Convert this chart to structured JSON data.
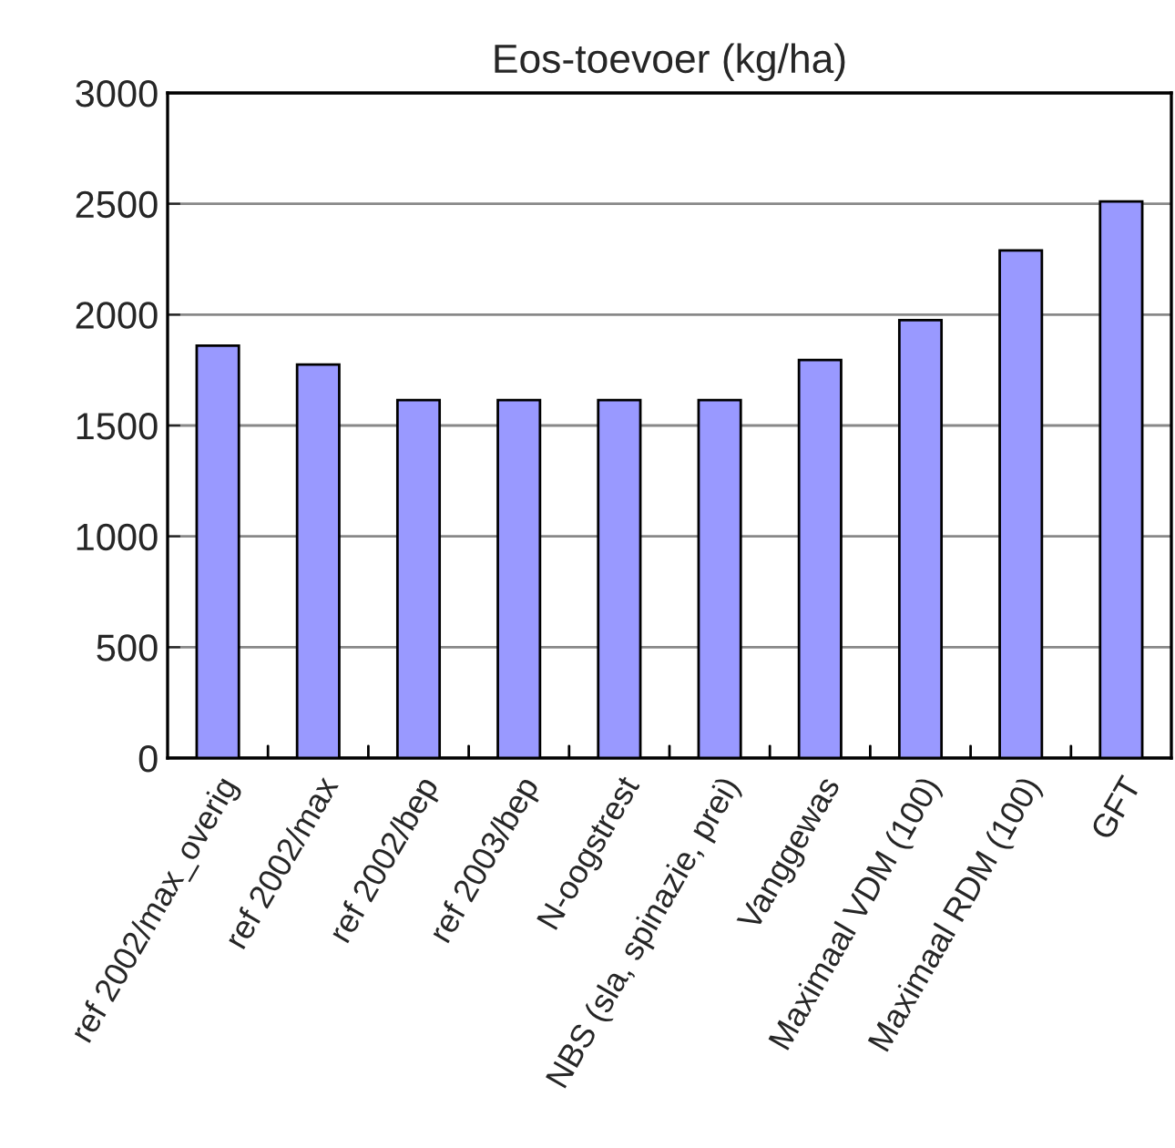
{
  "chart_data": {
    "type": "bar",
    "title": "Eos-toevoer (kg/ha)",
    "categories": [
      "ref 2002/max_overig",
      "ref 2002/max",
      "ref 2002/bep",
      "ref 2003/bep",
      "N-oogstrest",
      "NBS (sla, spinazie, prei)",
      "Vanggewas",
      "Maximaal VDM (100)",
      "Maximaal RDM (100)",
      "GFT"
    ],
    "values": [
      1860,
      1775,
      1615,
      1615,
      1615,
      1615,
      1795,
      1975,
      2290,
      2510
    ],
    "color": "#9999ff",
    "ylim": [
      0,
      3000
    ],
    "yticks": [
      0,
      500,
      1000,
      1500,
      2000,
      2500,
      3000
    ],
    "grid": "y"
  }
}
